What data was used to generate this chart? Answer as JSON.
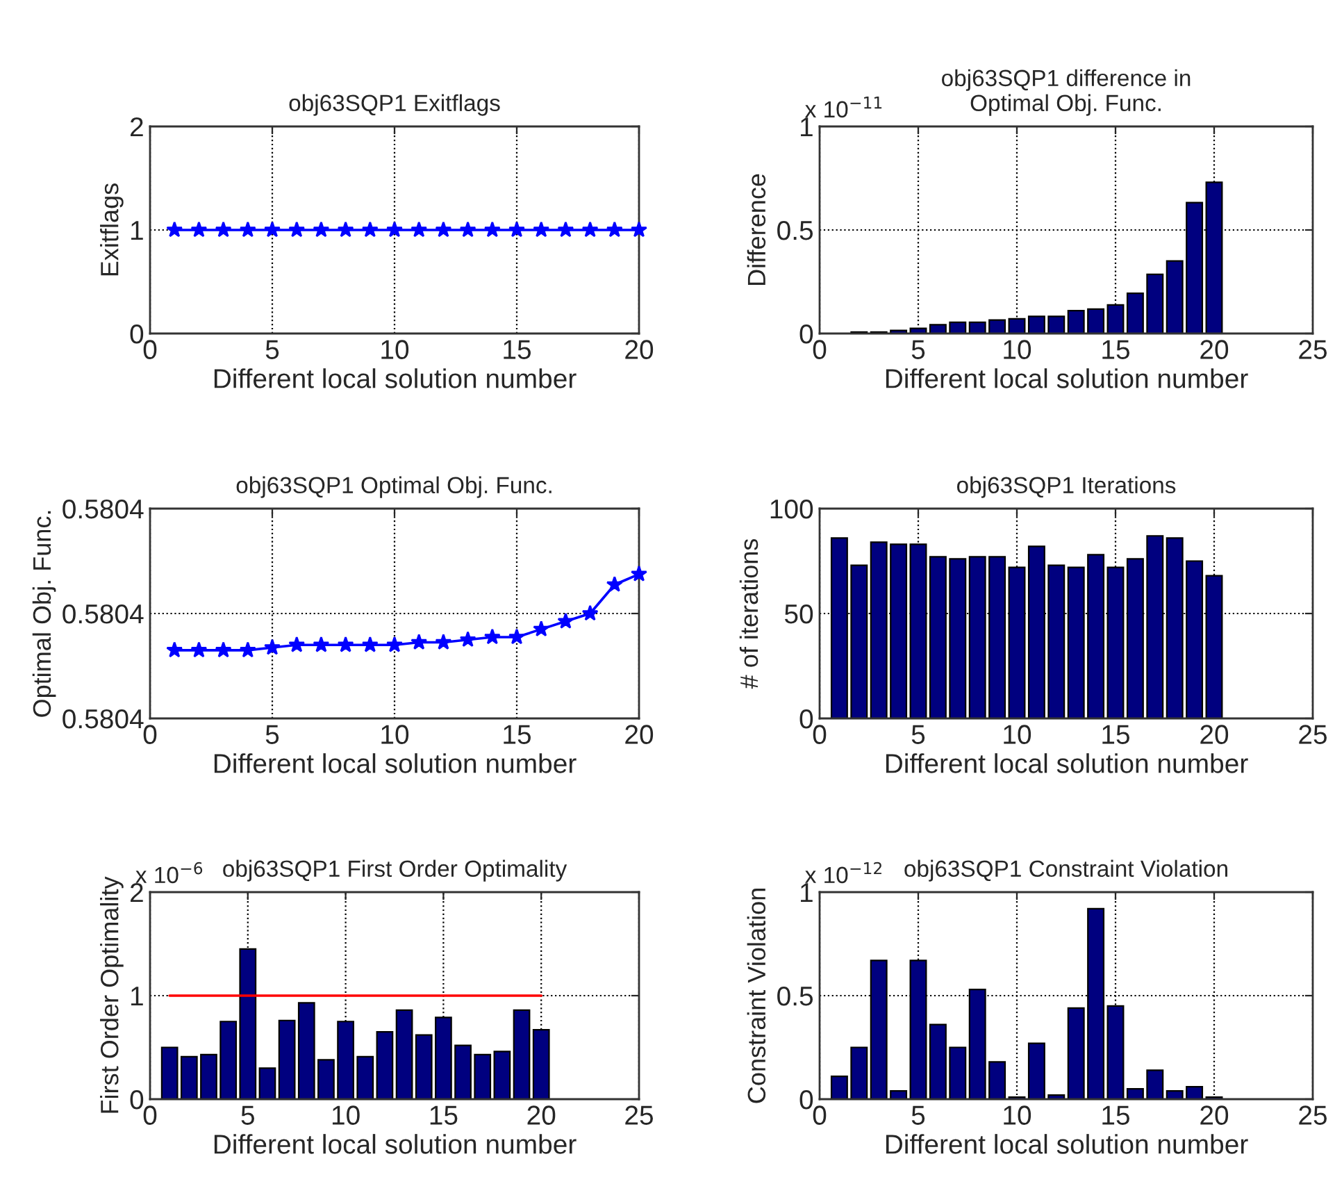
{
  "chart_data": [
    {
      "type": "line",
      "title": "obj63SQP1 Exitflags",
      "xlabel": "Different local solution number",
      "ylabel": "Exitflags",
      "xlim": [
        0,
        20
      ],
      "xticks": [
        0,
        5,
        10,
        15,
        20
      ],
      "ylim": [
        0,
        2
      ],
      "yticks": [
        0,
        1,
        2
      ],
      "grid": true,
      "marker": "star",
      "line_style": "solid",
      "series": [
        {
          "color": "#0000ff",
          "x": [
            1,
            2,
            3,
            4,
            5,
            6,
            7,
            8,
            9,
            10,
            11,
            12,
            13,
            14,
            15,
            16,
            17,
            18,
            19,
            20
          ],
          "values": [
            1,
            1,
            1,
            1,
            1,
            1,
            1,
            1,
            1,
            1,
            1,
            1,
            1,
            1,
            1,
            1,
            1,
            1,
            1,
            1
          ]
        }
      ]
    },
    {
      "type": "bar",
      "title": "obj63SQP1 difference in\nOptimal Obj. Func.",
      "xlabel": "Different local solution number",
      "ylabel": "Difference",
      "xlim": [
        0,
        25
      ],
      "xticks": [
        0,
        5,
        10,
        15,
        20,
        25
      ],
      "ylim": [
        0,
        1
      ],
      "yticks": [
        0,
        0.5,
        1
      ],
      "grid": true,
      "annotations": [
        "x 10$^{−11}$"
      ],
      "series": [
        {
          "color": "#00007f",
          "x": [
            2,
            3,
            4,
            5,
            6,
            7,
            8,
            9,
            10,
            11,
            12,
            13,
            14,
            15,
            16,
            17,
            18,
            19,
            20
          ],
          "values": [
            0.007,
            0.007,
            0.015,
            0.025,
            0.042,
            0.054,
            0.054,
            0.065,
            0.071,
            0.083,
            0.083,
            0.11,
            0.118,
            0.138,
            0.194,
            0.286,
            0.35,
            0.632,
            0.73
          ]
        }
      ]
    },
    {
      "type": "line",
      "title": "obj63SQP1 Optimal Obj. Func.",
      "xlabel": "Different local solution number",
      "ylabel": "Optimal Obj. Func.",
      "xlim": [
        0,
        20
      ],
      "xticks": [
        0,
        5,
        10,
        15,
        20
      ],
      "ylim": [
        0.58036,
        0.58044
      ],
      "yticks": [
        {
          "value": 0.58036,
          "label": "0.5804"
        },
        {
          "value": 0.5804,
          "label": "0.5804"
        },
        {
          "value": 0.58044,
          "label": "0.5804"
        }
      ],
      "grid": true,
      "marker": "star",
      "line_style": "solid",
      "series": [
        {
          "color": "#0000ff",
          "x": [
            1,
            2,
            3,
            4,
            5,
            6,
            7,
            8,
            9,
            10,
            11,
            12,
            13,
            14,
            15,
            16,
            17,
            18,
            19,
            20
          ],
          "values": [
            0.580386,
            0.580386,
            0.580386,
            0.580386,
            0.580387,
            0.580388,
            0.580388,
            0.580388,
            0.580388,
            0.580388,
            0.580389,
            0.580389,
            0.58039,
            0.580391,
            0.580391,
            0.580394,
            0.580397,
            0.5804,
            0.580411,
            0.580415
          ]
        }
      ]
    },
    {
      "type": "bar",
      "title": "obj63SQP1 Iterations",
      "xlabel": "Different local solution number",
      "ylabel": "# of iterations",
      "xlim": [
        0,
        25
      ],
      "xticks": [
        0,
        5,
        10,
        15,
        20,
        25
      ],
      "ylim": [
        0,
        100
      ],
      "yticks": [
        0,
        50,
        100
      ],
      "grid": true,
      "series": [
        {
          "color": "#00007f",
          "x": [
            1,
            2,
            3,
            4,
            5,
            6,
            7,
            8,
            9,
            10,
            11,
            12,
            13,
            14,
            15,
            16,
            17,
            18,
            19,
            20
          ],
          "values": [
            86,
            73,
            84,
            83,
            83,
            77,
            76,
            77,
            77,
            72,
            82,
            73,
            72,
            78,
            72,
            76,
            87,
            86,
            75,
            68
          ]
        }
      ]
    },
    {
      "type": "bar",
      "title": "obj63SQP1 First Order Optimality",
      "xlabel": "Different local solution number",
      "ylabel": "First Order Optimality",
      "xlim": [
        0,
        25
      ],
      "xticks": [
        0,
        5,
        10,
        15,
        20,
        25
      ],
      "ylim": [
        0,
        2
      ],
      "yticks": [
        0,
        1,
        2
      ],
      "grid": true,
      "annotations": [
        "x 10$^{−6}$"
      ],
      "series": [
        {
          "color": "#00007f",
          "x": [
            1,
            2,
            3,
            4,
            5,
            6,
            7,
            8,
            9,
            10,
            11,
            12,
            13,
            14,
            15,
            16,
            17,
            18,
            19,
            20
          ],
          "values": [
            0.5,
            0.41,
            0.43,
            0.75,
            1.45,
            0.3,
            0.76,
            0.93,
            0.38,
            0.75,
            0.41,
            0.65,
            0.86,
            0.62,
            0.79,
            0.52,
            0.43,
            0.46,
            0.86,
            0.67
          ]
        },
        {
          "type": "line",
          "color": "#ff0000",
          "x": [
            1,
            20
          ],
          "values": [
            1,
            1
          ]
        }
      ]
    },
    {
      "type": "bar",
      "title": "obj63SQP1 Constraint Violation",
      "xlabel": "Different local solution number",
      "ylabel": "Constraint Violation",
      "xlim": [
        0,
        25
      ],
      "xticks": [
        0,
        5,
        10,
        15,
        20,
        25
      ],
      "ylim": [
        0,
        1
      ],
      "yticks": [
        0,
        0.5,
        1
      ],
      "grid": true,
      "annotations": [
        "x 10$^{−12}$"
      ],
      "series": [
        {
          "color": "#00007f",
          "x": [
            1,
            2,
            3,
            4,
            5,
            6,
            7,
            8,
            9,
            10,
            11,
            12,
            13,
            14,
            15,
            16,
            17,
            18,
            19,
            20
          ],
          "values": [
            0.11,
            0.25,
            0.67,
            0.04,
            0.67,
            0.36,
            0.25,
            0.53,
            0.18,
            0.01,
            0.27,
            0.02,
            0.44,
            0.92,
            0.45,
            0.05,
            0.14,
            0.04,
            0.06,
            0.01
          ]
        }
      ]
    }
  ]
}
